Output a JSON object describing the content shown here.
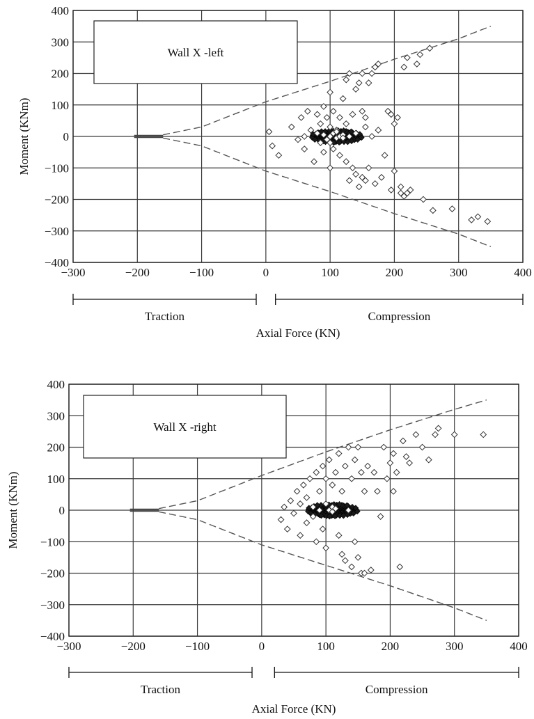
{
  "chart_data": [
    {
      "type": "scatter",
      "legend_box": "Wall X -left",
      "xlabel": "Axial Force (KN)",
      "ylabel": "Moment (KNm)",
      "xlim": [
        -300,
        400
      ],
      "ylim": [
        -400,
        400
      ],
      "xticks": [
        "−300",
        "−200",
        "−100",
        "0",
        "100",
        "200",
        "300",
        "400"
      ],
      "yticks": [
        "−400",
        "−300",
        "−200",
        "−100",
        "0",
        "100",
        "200",
        "300",
        "400"
      ],
      "grid": true,
      "regions": [
        {
          "label": "Traction",
          "from": -300,
          "to": -15
        },
        {
          "label": "Compression",
          "from": 15,
          "to": 400
        }
      ],
      "envelope": [
        {
          "name": "",
          "style": "dashed",
          "x": [
            -160,
            -100,
            0,
            100,
            200,
            300,
            350
          ],
          "y": [
            5,
            30,
            110,
            175,
            245,
            310,
            350
          ]
        },
        {
          "name": "",
          "style": "dashed",
          "x": [
            -160,
            -100,
            0,
            100,
            200,
            300,
            350
          ],
          "y": [
            -5,
            -30,
            -110,
            -175,
            -245,
            -310,
            -350
          ]
        },
        {
          "name": "",
          "style": "solid",
          "x": [
            -205,
            -160
          ],
          "y": [
            3,
            3
          ]
        },
        {
          "name": "",
          "style": "solid",
          "x": [
            -205,
            -160
          ],
          "y": [
            -3,
            -3
          ]
        }
      ],
      "points": {
        "x": [
          5,
          10,
          20,
          40,
          50,
          55,
          60,
          60,
          65,
          70,
          75,
          80,
          80,
          85,
          85,
          90,
          90,
          90,
          95,
          95,
          100,
          100,
          100,
          100,
          100,
          105,
          105,
          105,
          110,
          110,
          110,
          115,
          115,
          115,
          120,
          120,
          120,
          125,
          125,
          125,
          130,
          130,
          130,
          135,
          135,
          140,
          140,
          140,
          145,
          145,
          150,
          150,
          150,
          155,
          155,
          155,
          160,
          160,
          165,
          165,
          170,
          170,
          175,
          175,
          180,
          185,
          190,
          195,
          195,
          200,
          200,
          205,
          210,
          210,
          215,
          215,
          220,
          220,
          225,
          235,
          240,
          245,
          255,
          260,
          290,
          320,
          330,
          345
        ],
        "y": [
          15,
          -30,
          -60,
          30,
          -10,
          60,
          0,
          -40,
          80,
          20,
          -80,
          70,
          10,
          -20,
          40,
          95,
          5,
          -50,
          60,
          -10,
          140,
          30,
          0,
          -20,
          -100,
          80,
          10,
          -40,
          20,
          -5,
          15,
          0,
          60,
          -60,
          120,
          5,
          -5,
          180,
          40,
          -80,
          200,
          0,
          -140,
          70,
          -100,
          150,
          10,
          -120,
          170,
          -160,
          200,
          80,
          -130,
          30,
          -140,
          60,
          -100,
          170,
          200,
          0,
          220,
          -150,
          230,
          20,
          -130,
          -60,
          80,
          70,
          -170,
          40,
          -110,
          60,
          -180,
          -160,
          220,
          -190,
          250,
          -180,
          -170,
          230,
          260,
          -200,
          280,
          -235,
          -230,
          -265,
          -255,
          -270
        ]
      }
    },
    {
      "type": "scatter",
      "legend_box": "Wall X -right",
      "xlabel": "Axial Force (KN)",
      "ylabel": "Moment (KNm)",
      "xlim": [
        -300,
        400
      ],
      "ylim": [
        -400,
        400
      ],
      "xticks": [
        "−300",
        "−200",
        "−100",
        "0",
        "100",
        "200",
        "300",
        "400"
      ],
      "yticks": [
        "−400",
        "−300",
        "−200",
        "−100",
        "0",
        "100",
        "200",
        "300",
        "400"
      ],
      "grid": true,
      "regions": [
        {
          "label": "Traction",
          "from": -300,
          "to": -15
        },
        {
          "label": "Compression",
          "from": 20,
          "to": 400
        }
      ],
      "envelope": [
        {
          "name": "",
          "style": "dashed",
          "x": [
            -160,
            -100,
            0,
            100,
            200,
            300,
            350
          ],
          "y": [
            5,
            30,
            110,
            185,
            255,
            320,
            350
          ]
        },
        {
          "name": "",
          "style": "dashed",
          "x": [
            -160,
            -100,
            0,
            100,
            200,
            300,
            350
          ],
          "y": [
            -5,
            -30,
            -110,
            -175,
            -240,
            -310,
            -350
          ]
        },
        {
          "name": "",
          "style": "solid",
          "x": [
            -205,
            -160
          ],
          "y": [
            3,
            3
          ]
        },
        {
          "name": "",
          "style": "solid",
          "x": [
            -205,
            -160
          ],
          "y": [
            -3,
            -3
          ]
        }
      ],
      "points": {
        "x": [
          30,
          35,
          40,
          45,
          50,
          55,
          60,
          60,
          65,
          70,
          70,
          75,
          80,
          80,
          85,
          85,
          90,
          90,
          95,
          95,
          100,
          100,
          100,
          105,
          105,
          110,
          110,
          110,
          115,
          115,
          120,
          120,
          125,
          125,
          130,
          130,
          135,
          135,
          140,
          140,
          145,
          145,
          150,
          150,
          155,
          155,
          160,
          160,
          165,
          170,
          175,
          180,
          185,
          190,
          195,
          200,
          205,
          205,
          210,
          215,
          220,
          225,
          230,
          240,
          250,
          260,
          270,
          275,
          300,
          345
        ],
        "y": [
          -30,
          10,
          -60,
          30,
          -10,
          60,
          -80,
          20,
          80,
          -40,
          40,
          100,
          -20,
          10,
          120,
          -100,
          60,
          0,
          140,
          -60,
          100,
          20,
          -120,
          160,
          0,
          80,
          -5,
          10,
          5,
          120,
          180,
          -80,
          60,
          -140,
          140,
          -160,
          200,
          0,
          100,
          -180,
          160,
          -100,
          200,
          -150,
          120,
          -200,
          60,
          -200,
          140,
          -190,
          120,
          60,
          -20,
          200,
          100,
          150,
          180,
          60,
          120,
          -180,
          220,
          170,
          150,
          240,
          200,
          160,
          240,
          260,
          240,
          240
        ]
      }
    }
  ]
}
